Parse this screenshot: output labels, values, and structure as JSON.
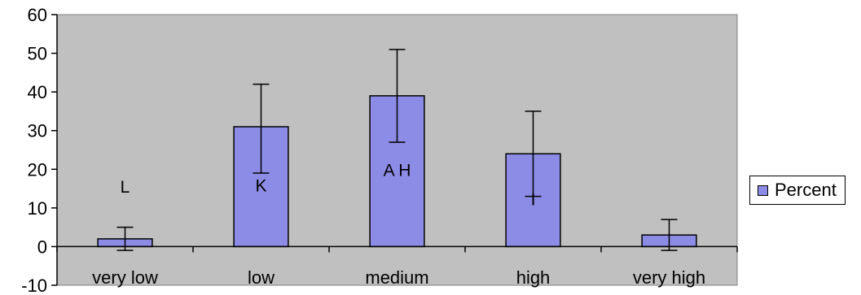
{
  "chart_data": {
    "type": "bar",
    "categories": [
      "very low",
      "low",
      "medium",
      "high",
      "very high"
    ],
    "values": [
      2,
      31,
      39,
      24,
      3
    ],
    "error_low": [
      -1,
      19,
      27,
      13,
      -1
    ],
    "error_high": [
      5,
      42,
      51,
      35,
      7
    ],
    "bar_annotations": [
      "L",
      "K",
      "A H",
      "I",
      ""
    ],
    "legend": [
      "Percent"
    ],
    "legend_placement": "right",
    "ylim": [
      -10,
      60
    ],
    "yticks": [
      "-10",
      "0",
      "10",
      "20",
      "30",
      "40",
      "50",
      "60"
    ],
    "grid": false,
    "colors": {
      "bar": "#8c8ce6",
      "plot_bg": "#c0c0c0",
      "axis": "#000000"
    }
  }
}
